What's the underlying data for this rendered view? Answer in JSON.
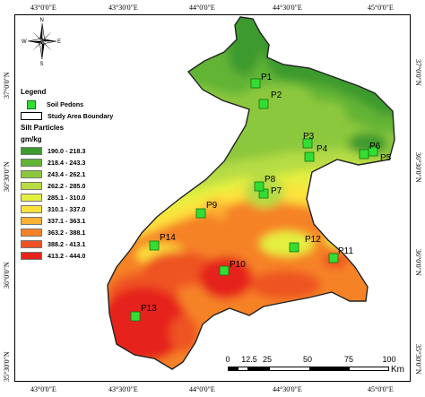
{
  "map": {
    "lon_labels": [
      "43°0'0\"E",
      "43°30'0\"E",
      "44°0'0\"E",
      "44°30'0\"E",
      "45°0'0\"E"
    ],
    "lat_labels": [
      "37°0'0\"N",
      "36°30'0\"N",
      "36°0'0\"N",
      "35°30'0\"N"
    ],
    "pedons": [
      {
        "id": "P1",
        "label": "P1"
      },
      {
        "id": "P2",
        "label": "P2"
      },
      {
        "id": "P3",
        "label": "P3"
      },
      {
        "id": "P4",
        "label": "P4"
      },
      {
        "id": "P5",
        "label": "P5"
      },
      {
        "id": "P6",
        "label": "P6"
      },
      {
        "id": "P7",
        "label": "P7"
      },
      {
        "id": "P8",
        "label": "P8"
      },
      {
        "id": "P9",
        "label": "P9"
      },
      {
        "id": "P10",
        "label": "P10"
      },
      {
        "id": "P11",
        "label": "P11"
      },
      {
        "id": "P12",
        "label": "P12"
      },
      {
        "id": "P13",
        "label": "P13"
      },
      {
        "id": "P14",
        "label": "P14"
      }
    ],
    "pedon_color": "#33dd33",
    "north_arrow": {
      "N": "N",
      "S": "S",
      "E": "E",
      "W": "W"
    }
  },
  "legend": {
    "title": "Legend",
    "pedons_label": "Soil Pedons",
    "boundary_label": "Study Area Boundary",
    "variable": "Silt Particles",
    "unit": "gm/kg",
    "classes": [
      {
        "range": "190.0 - 218.3",
        "color": "#3c9a2f"
      },
      {
        "range": "218.4 - 243.3",
        "color": "#62b434"
      },
      {
        "range": "243.4 - 262.1",
        "color": "#8cc83c"
      },
      {
        "range": "262.2 - 285.0",
        "color": "#b6dc44"
      },
      {
        "range": "285.1 - 310.0",
        "color": "#e4f040"
      },
      {
        "range": "310.1 - 337.0",
        "color": "#fce23c"
      },
      {
        "range": "337.1 - 363.1",
        "color": "#fbb232"
      },
      {
        "range": "363.2 - 388.1",
        "color": "#f68228"
      },
      {
        "range": "388.2 - 413.1",
        "color": "#ee5222"
      },
      {
        "range": "413.2 - 444.0",
        "color": "#e6231c"
      }
    ]
  },
  "scale": {
    "ticks": [
      "0",
      "12.5",
      "25",
      "50",
      "75",
      "100"
    ],
    "unit": "Km"
  }
}
